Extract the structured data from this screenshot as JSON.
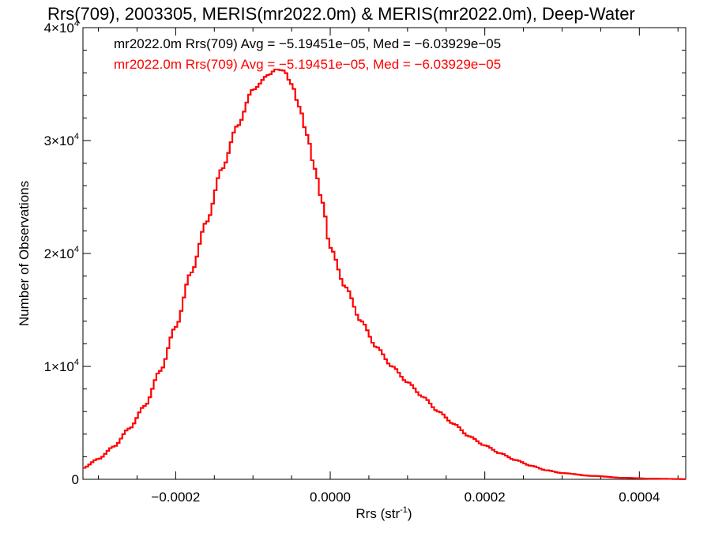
{
  "chart_data": {
    "type": "line",
    "step": true,
    "title": "Rrs(709), 2003305, MERIS(mr2022.0m) & MERIS(mr2022.0m), Deep-Water",
    "xlabel": {
      "base": "Rrs (str",
      "sup": "-1",
      "suffix": ")"
    },
    "ylabel": "Number of Observations",
    "xlim": [
      -0.00032,
      0.00046
    ],
    "ylim": [
      0,
      40000
    ],
    "x_ticks": [
      {
        "value": -0.0002,
        "label": "−0.0002"
      },
      {
        "value": 0.0,
        "label": "0.0000"
      },
      {
        "value": 0.0002,
        "label": "0.0002"
      },
      {
        "value": 0.0004,
        "label": "0.0004"
      }
    ],
    "y_ticks": [
      {
        "value": 0,
        "label": "0",
        "sup": ""
      },
      {
        "value": 10000,
        "label": "1×10",
        "sup": "4"
      },
      {
        "value": 20000,
        "label": "2×10",
        "sup": "4"
      },
      {
        "value": 30000,
        "label": "3×10",
        "sup": "4"
      },
      {
        "value": 40000,
        "label": "4×10",
        "sup": "4"
      }
    ],
    "legend": {
      "placement": "top-left",
      "entries": [
        {
          "text": "mr2022.0m Rrs(709) Avg = −5.19451e−05, Med = −6.03929e−05",
          "color": "#000000"
        },
        {
          "text": "mr2022.0m Rrs(709) Avg = −5.19451e−05, Med = −6.03929e−05",
          "color": "#ff0000"
        }
      ]
    },
    "series": [
      {
        "color": "#ff0000",
        "x": [
          -0.00032,
          -0.0003,
          -0.00028,
          -0.00026,
          -0.00024,
          -0.00022,
          -0.0002,
          -0.00018,
          -0.00016,
          -0.00014,
          -0.00012,
          -0.0001,
          -8e-05,
          -7e-05,
          -6e-05,
          -5e-05,
          -4e-05,
          -3e-05,
          -2e-05,
          -1e-05,
          0.0,
          2e-05,
          4e-05,
          6e-05,
          8e-05,
          0.0001,
          0.00012,
          0.00014,
          0.00016,
          0.00018,
          0.0002,
          0.00022,
          0.00024,
          0.00026,
          0.00028,
          0.0003,
          0.00034,
          0.00038,
          0.00042,
          0.00046
        ],
        "values": [
          1000,
          1800,
          2900,
          4500,
          6500,
          9600,
          13500,
          18300,
          22800,
          27500,
          31300,
          34500,
          35800,
          36300,
          36200,
          35000,
          33000,
          30500,
          27500,
          24500,
          20500,
          17000,
          14000,
          11700,
          10000,
          8600,
          7300,
          6000,
          4900,
          3800,
          3000,
          2300,
          1700,
          1200,
          800,
          550,
          300,
          130,
          50,
          20
        ]
      },
      {
        "color": "#ff0000",
        "x": [
          -0.00032,
          -0.0003,
          -0.00028,
          -0.00026,
          -0.00024,
          -0.00022,
          -0.0002,
          -0.00018,
          -0.00016,
          -0.00014,
          -0.00012,
          -0.0001,
          -8e-05,
          -7e-05,
          -6e-05,
          -5e-05,
          -4e-05,
          -3e-05,
          -2e-05,
          -1e-05,
          0.0,
          2e-05,
          4e-05,
          6e-05,
          8e-05,
          0.0001,
          0.00012,
          0.00014,
          0.00016,
          0.00018,
          0.0002,
          0.00022,
          0.00024,
          0.00026,
          0.00028,
          0.0003,
          0.00034,
          0.00038,
          0.00042,
          0.00046
        ],
        "values": [
          1000,
          1800,
          2900,
          4500,
          6500,
          9600,
          13500,
          18300,
          22800,
          27500,
          31300,
          34500,
          35800,
          36300,
          36200,
          35000,
          33000,
          30500,
          27500,
          24500,
          20500,
          17000,
          14000,
          11700,
          10000,
          8600,
          7300,
          6000,
          4900,
          3800,
          3000,
          2300,
          1700,
          1200,
          800,
          550,
          300,
          130,
          50,
          20
        ]
      }
    ]
  }
}
